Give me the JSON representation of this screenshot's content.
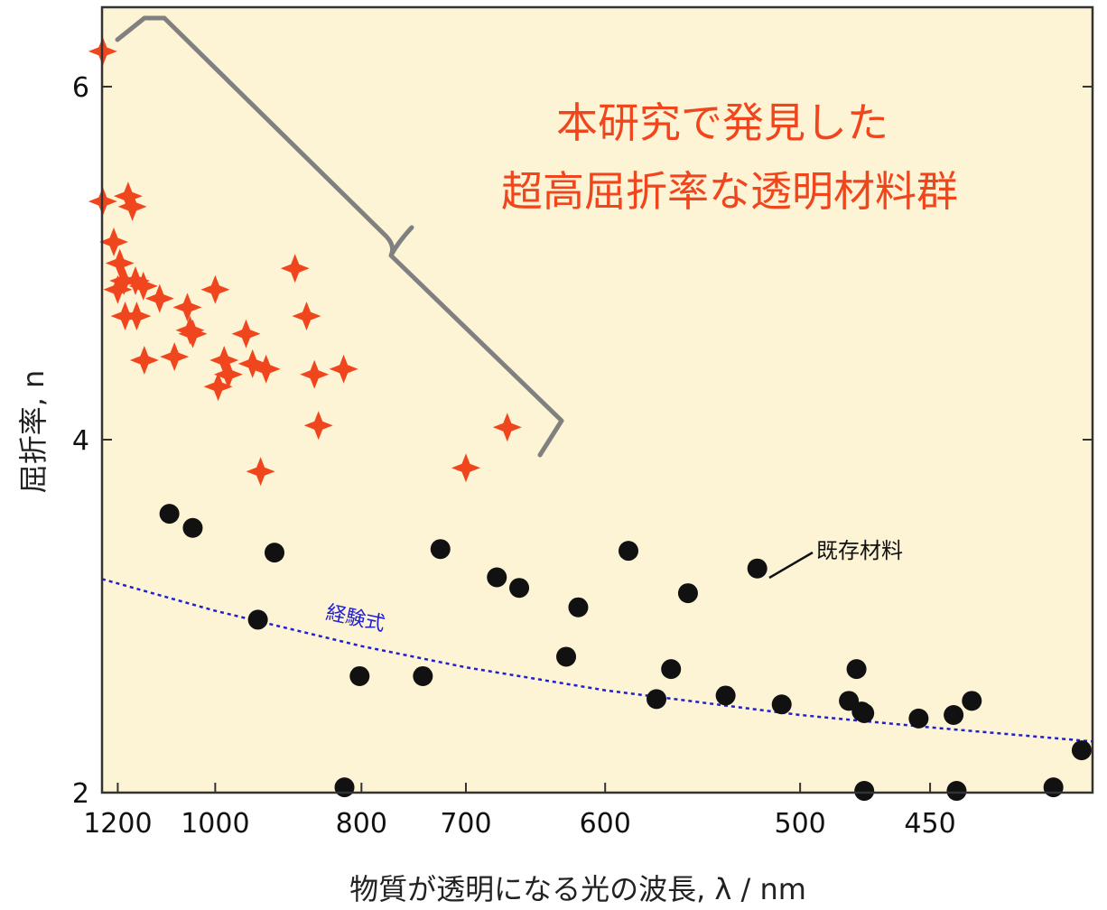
{
  "chart_data": {
    "type": "scatter",
    "xlabel": "物質が透明になる光の波長, λ / nm",
    "ylabel": "屈折率, n",
    "x_scale": "reciprocal",
    "xlim": [
      1240,
      400
    ],
    "ylim": [
      2,
      6.45
    ],
    "x_ticks": [
      1200,
      1000,
      800,
      700,
      600,
      500,
      450
    ],
    "y_ticks": [
      2,
      4,
      6
    ],
    "grid": false,
    "background": "#fdf3d5",
    "annotations": {
      "headline_line1": "本研究で発見した",
      "headline_line2": "超高屈折率な透明材料群",
      "existing_label": "既存材料",
      "fit_label": "経験式"
    },
    "colors": {
      "new_materials": "#f0461e",
      "existing_materials": "#111111",
      "fit_line": "#2020d0",
      "brace": "#808080"
    },
    "series": [
      {
        "marker": "star",
        "points": [
          [
            1238,
            6.2
          ],
          [
            1238,
            5.35
          ],
          [
            1210,
            5.12
          ],
          [
            1195,
            5.0
          ],
          [
            1200,
            4.85
          ],
          [
            1185,
            4.9
          ],
          [
            1175,
            5.38
          ],
          [
            1165,
            5.32
          ],
          [
            1158,
            4.9
          ],
          [
            1182,
            4.7
          ],
          [
            1155,
            4.7
          ],
          [
            1140,
            4.87
          ],
          [
            1138,
            4.45
          ],
          [
            1105,
            4.8
          ],
          [
            1075,
            4.47
          ],
          [
            1050,
            4.75
          ],
          [
            1045,
            4.62
          ],
          [
            1040,
            4.6
          ],
          [
            1000,
            4.85
          ],
          [
            995,
            4.3
          ],
          [
            985,
            4.45
          ],
          [
            978,
            4.37
          ],
          [
            950,
            4.6
          ],
          [
            940,
            4.43
          ],
          [
            928,
            3.82
          ],
          [
            920,
            4.4
          ],
          [
            880,
            4.97
          ],
          [
            865,
            4.7
          ],
          [
            855,
            4.37
          ],
          [
            850,
            4.08
          ],
          [
            820,
            4.4
          ],
          [
            700,
            3.84
          ],
          [
            667,
            4.07
          ]
        ]
      },
      {
        "marker": "circle",
        "points": [
          [
            1085,
            3.58
          ],
          [
            1040,
            3.5
          ],
          [
            932,
            2.98
          ],
          [
            908,
            3.36
          ],
          [
            819,
            2.03
          ],
          [
            802,
            2.66
          ],
          [
            738,
            2.66
          ],
          [
            722,
            3.38
          ],
          [
            675,
            3.22
          ],
          [
            658,
            3.16
          ],
          [
            625,
            2.77
          ],
          [
            617,
            3.05
          ],
          [
            586,
            3.37
          ],
          [
            570,
            2.53
          ],
          [
            562,
            2.7
          ],
          [
            553,
            3.13
          ],
          [
            534,
            2.55
          ],
          [
            519,
            3.27
          ],
          [
            508,
            2.5
          ],
          [
            480,
            2.52
          ],
          [
            477,
            2.7
          ],
          [
            475,
            2.46
          ],
          [
            474,
            2.45
          ],
          [
            474,
            2.01
          ],
          [
            454,
            2.42
          ],
          [
            442,
            2.44
          ],
          [
            441,
            2.01
          ],
          [
            436,
            2.52
          ],
          [
            411,
            2.03
          ],
          [
            403,
            2.24
          ]
        ]
      },
      {
        "type": "line",
        "style": "dotted",
        "x": [
          1240,
          1000,
          800,
          700,
          600,
          500,
          450,
          400
        ],
        "y": [
          3.21,
          3.03,
          2.83,
          2.71,
          2.58,
          2.44,
          2.37,
          2.29
        ]
      }
    ]
  }
}
